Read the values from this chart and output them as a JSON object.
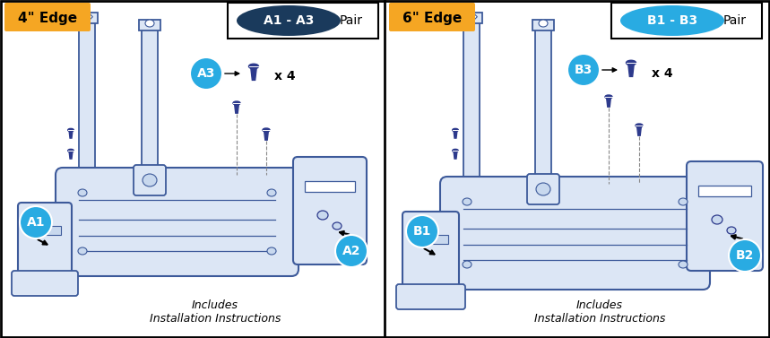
{
  "fig_width": 8.59,
  "fig_height": 3.77,
  "dpi": 100,
  "bg_color": "#ffffff",
  "colors": {
    "orange": "#f5a623",
    "dark_blue": "#1a3a5c",
    "light_blue": "#29abe2",
    "screw_color": "#2d3a8c",
    "diagram_line": "#3d5a9a",
    "diagram_fill": "#dce6f5",
    "diagram_fill2": "#c8d8ee",
    "black": "#000000",
    "white": "#ffffff",
    "gray": "#888888",
    "border_gray": "#666666"
  },
  "left": {
    "edge_label": "4\" Edge",
    "badge_text": "A1 - A3",
    "badge_bg": "#1a3a5c",
    "pair_text": "Pair",
    "callout_A1": "A1",
    "callout_A2": "A2",
    "callout_A3": "A3",
    "x4": "x 4",
    "includes": "Includes\nInstallation Instructions"
  },
  "right": {
    "edge_label": "6\" Edge",
    "badge_text": "B1 - B3",
    "badge_bg": "#29abe2",
    "pair_text": "Pair",
    "callout_B1": "B1",
    "callout_B2": "B2",
    "callout_B3": "B3",
    "x4": "x 4",
    "includes": "Includes\nInstallation Instructions"
  }
}
